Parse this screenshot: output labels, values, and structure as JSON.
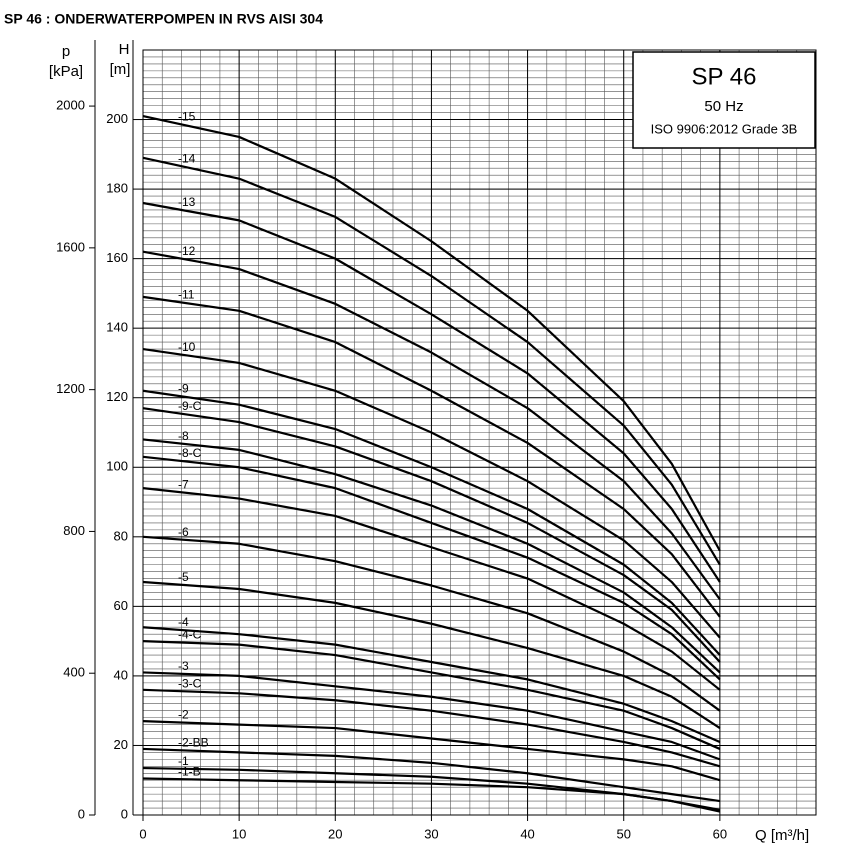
{
  "chart_data": {
    "type": "line",
    "title": "SP 46 : ONDERWATERPOMPEN IN RVS AISI 304",
    "annotations": [
      "SP 46",
      "50 Hz",
      "ISO 9906:2012 Grade 3B"
    ],
    "x_label": "Q [m³/h]",
    "y_label": [
      "H",
      "[m]"
    ],
    "y2_label": [
      "p",
      "[kPa]"
    ],
    "color": "#000000",
    "grid": true,
    "x": [
      0,
      10,
      20,
      30,
      40,
      50,
      55,
      60
    ],
    "xlim": [
      0,
      70
    ],
    "xticks": [
      0,
      10,
      20,
      30,
      40,
      50,
      60
    ],
    "ylim": [
      0,
      220
    ],
    "yticks": [
      0,
      20,
      40,
      60,
      80,
      100,
      120,
      140,
      160,
      180,
      200
    ],
    "y2lim": [
      0,
      2158.2
    ],
    "y2ticks": [
      0,
      400,
      800,
      1200,
      1600,
      2000
    ],
    "series": [
      {
        "name": "-15",
        "values": [
          201,
          195,
          183,
          165,
          145,
          119,
          101,
          76
        ]
      },
      {
        "name": "-14",
        "values": [
          189,
          183,
          172,
          155,
          136,
          112,
          95,
          72
        ]
      },
      {
        "name": "-13",
        "values": [
          176,
          171,
          160,
          144,
          127,
          104,
          88,
          67
        ]
      },
      {
        "name": "-12",
        "values": [
          162,
          157,
          147,
          133,
          117,
          96,
          81,
          62
        ]
      },
      {
        "name": "-11",
        "values": [
          149,
          145,
          136,
          122,
          107,
          88,
          75,
          57
        ]
      },
      {
        "name": "-10",
        "values": [
          134,
          130,
          122,
          110,
          96,
          79,
          67,
          51
        ]
      },
      {
        "name": "-9",
        "values": [
          122,
          118,
          111,
          100,
          88,
          72,
          61,
          46
        ]
      },
      {
        "name": "-9-C",
        "values": [
          117,
          113,
          106,
          96,
          84,
          69,
          59,
          44
        ]
      },
      {
        "name": "-8",
        "values": [
          108,
          105,
          98,
          89,
          78,
          64,
          54,
          41
        ]
      },
      {
        "name": "-8-C",
        "values": [
          103,
          100,
          94,
          84,
          74,
          61,
          52,
          39
        ]
      },
      {
        "name": "-7",
        "values": [
          94,
          91,
          86,
          77,
          68,
          55,
          47,
          36
        ]
      },
      {
        "name": "-6",
        "values": [
          80,
          78,
          73,
          66,
          58,
          47,
          40,
          30
        ]
      },
      {
        "name": "-5",
        "values": [
          67,
          65,
          61,
          55,
          48,
          40,
          34,
          25
        ]
      },
      {
        "name": "-4",
        "values": [
          54,
          52,
          49,
          44,
          39,
          32,
          27,
          21
        ]
      },
      {
        "name": "-4-C",
        "values": [
          50,
          49,
          46,
          41,
          36,
          30,
          25,
          19
        ]
      },
      {
        "name": "-3",
        "values": [
          41,
          40,
          37,
          34,
          30,
          24,
          21,
          16
        ]
      },
      {
        "name": "-3-C",
        "values": [
          36,
          35,
          33,
          30,
          26,
          21,
          18,
          14
        ]
      },
      {
        "name": "-2",
        "values": [
          27,
          26,
          25,
          22,
          19,
          16,
          14,
          10
        ]
      },
      {
        "name": "-2-BB",
        "values": [
          19,
          18,
          17,
          15,
          12,
          8,
          6,
          4
        ]
      },
      {
        "name": "-1",
        "values": [
          13.5,
          13,
          12,
          11,
          9,
          6,
          4,
          1.5
        ]
      },
      {
        "name": "-1-B",
        "values": [
          10.5,
          10,
          9.5,
          9,
          8,
          6,
          4,
          1
        ]
      }
    ]
  }
}
